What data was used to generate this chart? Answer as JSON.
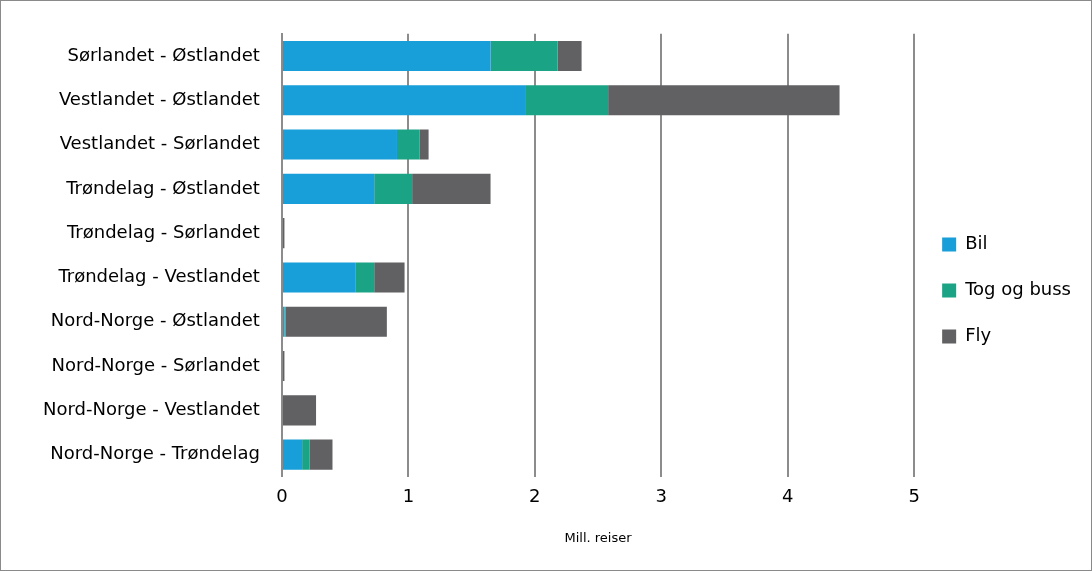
{
  "chart_data": {
    "type": "bar",
    "orientation": "horizontal",
    "stacked": true,
    "xlabel": "Mill. reiser",
    "categories": [
      "Sørlandet - Østlandet",
      "Vestlandet - Østlandet",
      "Vestlandet - Sørlandet",
      "Trøndelag - Østlandet",
      "Trøndelag - Sørlandet",
      "Trøndelag - Vestlandet",
      "Nord-Norge - Østlandet",
      "Nord-Norge - Sørlandet",
      "Nord-Norge - Vestlandet",
      "Nord-Norge - Trøndelag"
    ],
    "series": [
      {
        "name": "Bil",
        "color": "#189ed8",
        "values": [
          1.65,
          1.93,
          0.91,
          0.73,
          0,
          0.58,
          0.02,
          0,
          0,
          0.16
        ]
      },
      {
        "name": "Tog og buss",
        "color": "#1ba385",
        "values": [
          0.53,
          0.65,
          0.18,
          0.3,
          null,
          0.15,
          0.01,
          0,
          0,
          0.06
        ]
      },
      {
        "name": "Fly",
        "color": "#616163",
        "values": [
          0.19,
          1.83,
          0.07,
          0.62,
          0.02,
          0.24,
          0.8,
          0.02,
          0.27,
          0.18
        ]
      }
    ],
    "xlim": [
      0,
      5
    ],
    "xticks": [
      0,
      1,
      2,
      3,
      4,
      5
    ],
    "grid": "x",
    "legend": "right"
  }
}
